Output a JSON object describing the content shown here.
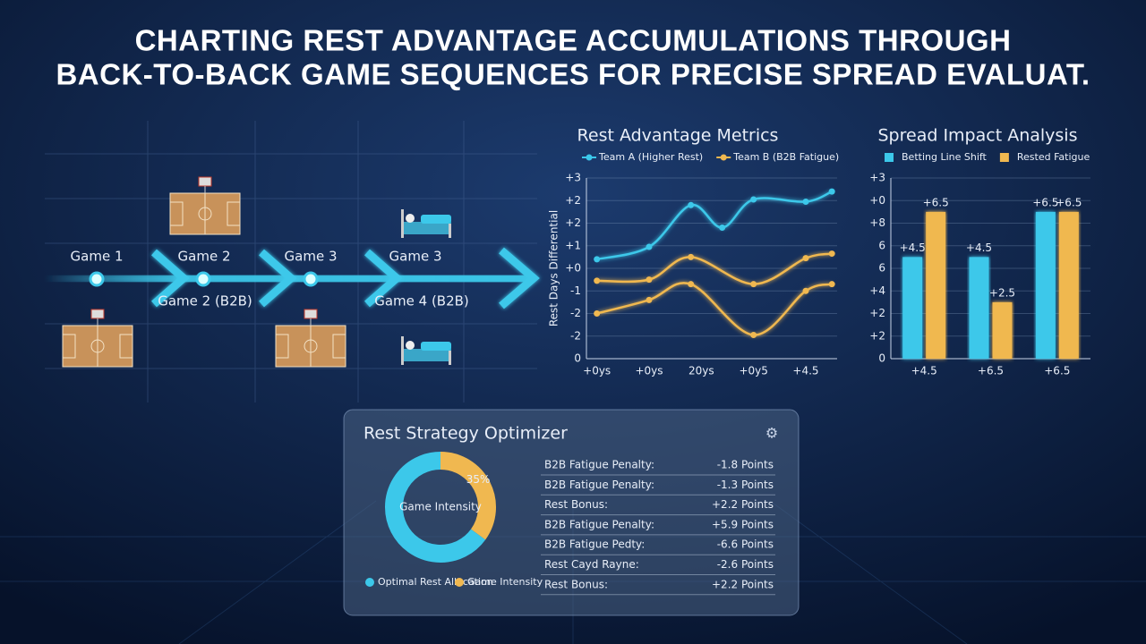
{
  "title": [
    "CHARTING REST ADVANTAGE ACCUMULATIONS THROUGH",
    "BACK-TO-BACK GAME SEQUENCES FOR PRECISE SPREAD EVALUAT."
  ],
  "timeline": {
    "above": [
      "Game 1",
      "Game 2",
      "Game 3",
      "Game 3"
    ],
    "below": [
      "Game 2 (B2B)",
      "Game 4 (B2B)"
    ]
  },
  "chart_data": [
    {
      "type": "line",
      "title": "Rest Advantage Metrics",
      "y_label": "Rest Days Differential",
      "xlim": [
        -0.2,
        4.6
      ],
      "xticks": [
        {
          "value": 0,
          "label": "+0ys"
        },
        {
          "value": 1,
          "label": "+0ys"
        },
        {
          "value": 2,
          "label": "20ys"
        },
        {
          "value": 3,
          "label": "+0y5"
        },
        {
          "value": 4,
          "label": "+4.5"
        }
      ],
      "ylim": [
        0,
        8
      ],
      "yticks": [
        {
          "value": 0,
          "label": "0"
        },
        {
          "value": 1,
          "label": "-2"
        },
        {
          "value": 2,
          "label": "-2"
        },
        {
          "value": 3,
          "label": "-1"
        },
        {
          "value": 4,
          "label": "+0"
        },
        {
          "value": 5,
          "label": "+1"
        },
        {
          "value": 6,
          "label": "+2"
        },
        {
          "value": 7,
          "label": "+2"
        },
        {
          "value": 8,
          "label": "+3"
        }
      ],
      "grid": true,
      "series": [
        {
          "name": "Team A (Higher Rest)",
          "color": "#3cc8ea",
          "x": [
            0,
            1,
            1.8,
            2.4,
            3,
            4,
            4.5
          ],
          "values": [
            4.4,
            4.95,
            6.8,
            5.8,
            7.05,
            6.95,
            7.4
          ]
        },
        {
          "name": "Team B (B2B Fatigue)",
          "color": "#f0b850",
          "x": [
            0,
            1,
            1.8,
            3,
            4,
            4.5
          ],
          "values": [
            3.45,
            3.5,
            4.5,
            3.3,
            4.45,
            4.65
          ]
        },
        {
          "color": "#f0b850",
          "x": [
            0,
            1,
            1.8,
            3,
            4,
            4.5
          ],
          "values": [
            2.0,
            2.6,
            3.3,
            1.05,
            3.0,
            3.3
          ]
        }
      ]
    },
    {
      "type": "bar",
      "title": "Spread Impact Analysis",
      "categories": [
        "+4.5",
        "+6.5",
        "+6.5"
      ],
      "ylim": [
        0,
        8
      ],
      "yticks": [
        {
          "value": 0,
          "label": "0"
        },
        {
          "value": 1,
          "label": "+2"
        },
        {
          "value": 2,
          "label": "+2"
        },
        {
          "value": 3,
          "label": "+4"
        },
        {
          "value": 4,
          "label": "6"
        },
        {
          "value": 5,
          "label": "6"
        },
        {
          "value": 6,
          "label": "+8"
        },
        {
          "value": 7,
          "label": "+0"
        },
        {
          "value": 8,
          "label": "+3"
        }
      ],
      "grid": true,
      "series": [
        {
          "name": "Betting Line Shift",
          "color": "#3cc8ea",
          "values": [
            4.5,
            4.5,
            6.5
          ],
          "value_labels": [
            "+4.5",
            "+4.5",
            "+6.5"
          ]
        },
        {
          "name": "Rested Fatigue",
          "color": "#f0b850",
          "values": [
            6.5,
            2.5,
            6.5
          ],
          "value_labels": [
            "+6.5",
            "+2.5",
            "+6.5"
          ]
        }
      ]
    },
    {
      "type": "pie",
      "title": "Rest Strategy Optimizer",
      "center_label": "Game Intensity",
      "categories": [
        "Optimal Rest Allocation",
        "Game Intensity"
      ],
      "values": [
        65,
        35
      ],
      "value_labels": [
        null,
        "35%"
      ],
      "colors": [
        "#3cc8ea",
        "#f0b850"
      ]
    }
  ],
  "optimizer": {
    "rows": [
      {
        "label": "B2B Fatigue Penalty:",
        "value": "-1.8 Points"
      },
      {
        "label": "B2B Fatigue Penalty:",
        "value": "-1.3 Points"
      },
      {
        "label": "Rest Bonus:",
        "value": "+2.2 Points"
      },
      {
        "label": "B2B Fatigue Penalty:",
        "value": "+5.9 Points"
      },
      {
        "label": "B2B Fatigue Pedty:",
        "value": "-6.6 Points"
      },
      {
        "label": "Rest Cayd Rayne:",
        "value": "-2.6 Points"
      },
      {
        "label": "Rest Bonus:",
        "value": "+2.2 Points"
      }
    ]
  }
}
